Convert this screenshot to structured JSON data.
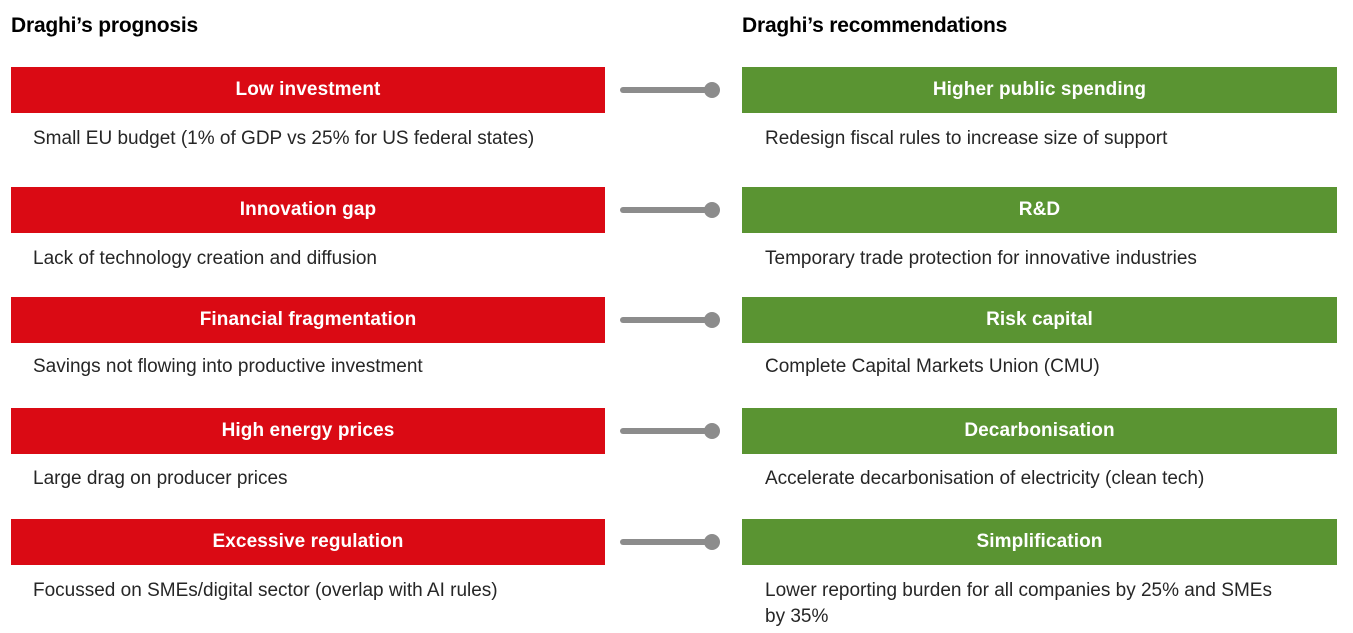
{
  "diagram": {
    "connector_color": "#8C8C8C",
    "left_column": {
      "title": "Draghi’s prognosis",
      "bar_color": "#DA0A14",
      "items": [
        {
          "label": "Low investment",
          "description": "Small EU budget (1% of GDP vs 25% for US federal states)"
        },
        {
          "label": "Innovation gap",
          "description": "Lack of technology creation and diffusion"
        },
        {
          "label": "Financial fragmentation",
          "description": "Savings not flowing into productive investment"
        },
        {
          "label": "High energy prices",
          "description": "Large drag on producer prices"
        },
        {
          "label": "Excessive regulation",
          "description": "Focussed on SMEs/digital sector (overlap with AI rules)"
        }
      ]
    },
    "right_column": {
      "title": "Draghi’s recommendations",
      "bar_color": "#5A9432",
      "items": [
        {
          "label": "Higher public spending",
          "description": "Redesign fiscal rules to increase size of support"
        },
        {
          "label": "R&D",
          "description": "Temporary trade protection for innovative industries"
        },
        {
          "label": "Risk capital",
          "description": "Complete Capital Markets Union (CMU)"
        },
        {
          "label": "Decarbonisation",
          "description": "Accelerate decarbonisation of electricity (clean tech)"
        },
        {
          "label": "Simplification",
          "description": "Lower reporting burden for all companies by 25% and SMEs by 35%"
        }
      ]
    }
  }
}
